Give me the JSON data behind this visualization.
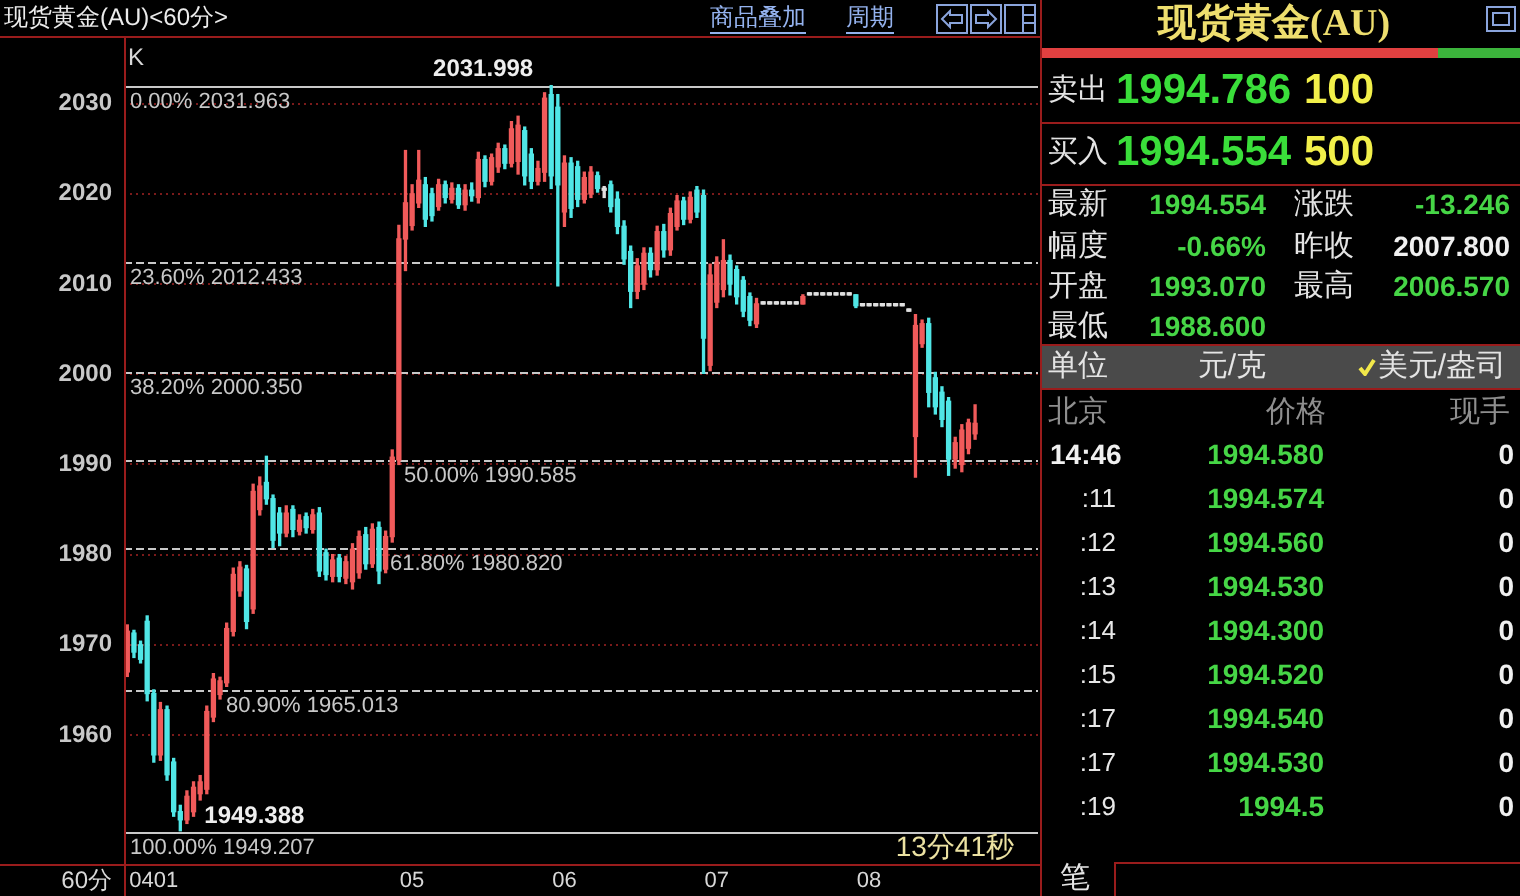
{
  "chart_data": [
    {
      "type": "candlestick",
      "title": "现货黄金(AU)<60分>",
      "xlabel": "60分",
      "categories": [
        null,
        null,
        null,
        null,
        "0401",
        null,
        null,
        null,
        null,
        null,
        null,
        null,
        null,
        null,
        null,
        null,
        null,
        null,
        null,
        null,
        null,
        null,
        null,
        null,
        null,
        null,
        null,
        null,
        null,
        null,
        null,
        null,
        null,
        null,
        null,
        null,
        null,
        null,
        null,
        null,
        null,
        null,
        null,
        "05",
        null,
        null,
        null,
        null,
        null,
        null,
        null,
        null,
        null,
        null,
        null,
        null,
        null,
        null,
        null,
        null,
        null,
        null,
        null,
        null,
        null,
        null,
        "06",
        null,
        null,
        null,
        null,
        null,
        null,
        null,
        null,
        null,
        null,
        null,
        null,
        null,
        null,
        null,
        null,
        null,
        null,
        null,
        null,
        null,
        null,
        "07",
        null,
        null,
        null,
        null,
        null,
        null,
        null,
        null,
        null,
        null,
        null,
        null,
        null,
        null,
        null,
        null,
        null,
        null,
        null,
        null,
        null,
        null,
        "08",
        null,
        null,
        null,
        null,
        null,
        null,
        null,
        null,
        null,
        null,
        null,
        null,
        null,
        null,
        null,
        null,
        null,
        null,
        null,
        null,
        null,
        null,
        null,
        null,
        null
      ],
      "ohlc": [
        [
          1967.0,
          1972.2,
          1966.5,
          1971.5
        ],
        [
          1971.3,
          1971.6,
          1968.6,
          1969.2
        ],
        [
          1970.0,
          1970.4,
          1968.0,
          1968.4
        ],
        [
          1972.6,
          1973.2,
          1963.8,
          1964.6
        ],
        [
          1964.6,
          1965.0,
          1957.0,
          1957.8
        ],
        [
          1957.8,
          1963.6,
          1957.2,
          1962.8
        ],
        [
          1962.8,
          1963.2,
          1955.0,
          1955.6
        ],
        [
          1957.0,
          1957.4,
          1951.0,
          1951.5
        ],
        [
          1951.5,
          1952.2,
          1949.388,
          1950.6
        ],
        [
          1950.6,
          1953.8,
          1950.2,
          1953.2
        ],
        [
          1951.5,
          1954.8,
          1951.0,
          1954.2
        ],
        [
          1953.5,
          1955.5,
          1952.8,
          1954.8
        ],
        [
          1954.0,
          1963.2,
          1953.5,
          1962.6
        ],
        [
          1962.0,
          1966.8,
          1961.5,
          1966.2
        ],
        [
          1964.5,
          1966.4,
          1964.0,
          1966.0
        ],
        [
          1965.8,
          1972.4,
          1965.4,
          1971.8
        ],
        [
          1971.5,
          1978.5,
          1971.0,
          1977.8
        ],
        [
          1976.0,
          1979.2,
          1975.4,
          1978.6
        ],
        [
          1978.4,
          1978.8,
          1971.8,
          1972.6
        ],
        [
          1974.0,
          1987.8,
          1973.5,
          1987.0
        ],
        [
          1985.0,
          1988.6,
          1984.4,
          1987.6
        ],
        [
          1988.0,
          1990.9,
          1985.6,
          1986.2
        ],
        [
          1986.2,
          1986.6,
          1980.8,
          1981.6
        ],
        [
          1984.6,
          1985.2,
          1981.0,
          1982.4
        ],
        [
          1982.4,
          1985.4,
          1982.0,
          1984.6
        ],
        [
          1985.0,
          1985.4,
          1982.0,
          1982.8
        ],
        [
          1982.6,
          1984.4,
          1982.2,
          1983.8
        ],
        [
          1984.2,
          1984.6,
          1982.4,
          1983.0
        ],
        [
          1982.8,
          1985.0,
          1982.4,
          1984.4
        ],
        [
          1984.6,
          1985.2,
          1977.6,
          1978.2
        ],
        [
          1980.2,
          1980.6,
          1977.2,
          1977.8
        ],
        [
          1977.6,
          1980.0,
          1977.0,
          1979.4
        ],
        [
          1979.6,
          1980.0,
          1977.0,
          1977.6
        ],
        [
          1977.4,
          1979.8,
          1976.8,
          1979.2
        ],
        [
          1977.0,
          1981.2,
          1976.2,
          1980.6
        ],
        [
          1978.0,
          1982.6,
          1977.4,
          1982.0
        ],
        [
          1982.2,
          1983.0,
          1978.4,
          1979.0
        ],
        [
          1979.0,
          1983.4,
          1978.6,
          1982.8
        ],
        [
          1983.0,
          1983.6,
          1976.8,
          1978.2
        ],
        [
          1978.4,
          1982.6,
          1978.0,
          1982.0
        ],
        [
          1982.0,
          1991.6,
          1981.4,
          1990.8
        ],
        [
          1990.5,
          2016.5,
          1990.0,
          2015.0
        ],
        [
          2015.0,
          2024.8,
          2011.5,
          2019.0
        ],
        [
          2016.5,
          2021.0,
          2016.0,
          2020.0
        ],
        [
          2019.0,
          2024.8,
          2018.5,
          2021.5
        ],
        [
          2021.0,
          2021.8,
          2016.4,
          2017.2
        ],
        [
          2020.0,
          2020.6,
          2017.0,
          2017.6
        ],
        [
          2018.6,
          2021.6,
          2018.2,
          2021.0
        ],
        [
          2021.0,
          2021.4,
          2019.0,
          2019.6
        ],
        [
          2019.4,
          2021.2,
          2019.0,
          2020.6
        ],
        [
          2020.6,
          2021.0,
          2018.4,
          2018.8
        ],
        [
          2018.8,
          2021.0,
          2018.2,
          2020.4
        ],
        [
          2020.4,
          2021.2,
          2019.2,
          2019.8
        ],
        [
          2019.6,
          2024.6,
          2019.0,
          2023.8
        ],
        [
          2023.8,
          2024.2,
          2020.8,
          2021.4
        ],
        [
          2021.4,
          2024.4,
          2021.0,
          2024.0
        ],
        [
          2023.0,
          2025.6,
          2022.4,
          2025.0
        ],
        [
          2025.0,
          2025.4,
          2022.8,
          2023.4
        ],
        [
          2023.4,
          2028.0,
          2023.0,
          2027.2
        ],
        [
          2023.6,
          2028.6,
          2022.2,
          2027.6
        ],
        [
          2027.0,
          2027.4,
          2021.0,
          2022.0
        ],
        [
          2024.4,
          2025.0,
          2020.6,
          2021.4
        ],
        [
          2021.4,
          2023.6,
          2021.0,
          2022.8
        ],
        [
          2022.4,
          2031.2,
          2021.4,
          2030.6
        ],
        [
          2031.0,
          2031.998,
          2020.6,
          2022.0
        ],
        [
          2029.6,
          2031.0,
          2009.8,
          2021.0
        ],
        [
          2018.0,
          2024.2,
          2016.4,
          2023.4
        ],
        [
          2023.4,
          2024.0,
          2017.4,
          2018.4
        ],
        [
          2023.0,
          2023.6,
          2018.6,
          2019.4
        ],
        [
          2019.4,
          2022.4,
          2019.0,
          2021.8
        ],
        [
          2020.0,
          2023.0,
          2019.6,
          2022.4
        ],
        [
          2022.0,
          2022.4,
          2020.2,
          2020.6
        ],
        [
          2020.4,
          2020.8,
          2019.6,
          2020.4
        ],
        [
          2021.0,
          2021.4,
          2018.0,
          2018.6
        ],
        [
          2019.4,
          2020.2,
          2015.6,
          2016.4
        ],
        [
          2016.4,
          2017.0,
          2012.2,
          2012.8
        ],
        [
          2013.6,
          2014.2,
          2007.4,
          2009.2
        ],
        [
          2009.2,
          2012.8,
          2008.4,
          2012.0
        ],
        [
          2010.0,
          2014.0,
          2009.4,
          2013.4
        ],
        [
          2013.4,
          2014.0,
          2010.8,
          2011.6
        ],
        [
          2011.6,
          2016.4,
          2011.0,
          2015.8
        ],
        [
          2015.8,
          2016.6,
          2013.0,
          2013.8
        ],
        [
          2013.8,
          2018.4,
          2013.2,
          2017.8
        ],
        [
          2016.4,
          2019.8,
          2016.0,
          2019.2
        ],
        [
          2019.2,
          2019.6,
          2016.6,
          2017.2
        ],
        [
          2017.2,
          2020.2,
          2016.8,
          2019.6
        ],
        [
          2020.4,
          2020.8,
          2017.4,
          2018.0
        ],
        [
          2019.8,
          2020.4,
          2000.1,
          2004.0
        ],
        [
          2001.0,
          2012.2,
          2000.4,
          2011.0
        ],
        [
          2008.0,
          2013.0,
          2007.4,
          2012.4
        ],
        [
          2009.4,
          2014.9,
          2008.6,
          2012.6
        ],
        [
          2012.6,
          2013.2,
          2008.8,
          2010.0
        ],
        [
          2011.6,
          2012.0,
          2007.8,
          2008.6
        ],
        [
          2010.4,
          2010.8,
          2006.4,
          2007.0
        ],
        [
          2008.6,
          2009.0,
          2005.4,
          2006.0
        ],
        [
          2005.6,
          2008.4,
          2005.2,
          2007.8
        ],
        [
          2007.8,
          2007.8,
          2007.8,
          2007.8
        ],
        [
          2007.8,
          2007.8,
          2007.8,
          2007.8
        ],
        [
          2007.8,
          2007.8,
          2007.8,
          2007.8
        ],
        [
          2007.8,
          2007.8,
          2007.8,
          2007.8
        ],
        [
          2007.8,
          2007.8,
          2007.8,
          2007.8
        ],
        [
          2007.8,
          2007.8,
          2007.8,
          2007.8
        ],
        [
          2007.8,
          2008.8,
          2007.8,
          2008.6
        ],
        [
          2008.8,
          2008.8,
          2008.8,
          2008.8
        ],
        [
          2008.8,
          2008.8,
          2008.8,
          2008.8
        ],
        [
          2008.8,
          2008.8,
          2008.8,
          2008.8
        ],
        [
          2008.8,
          2008.8,
          2008.8,
          2008.8
        ],
        [
          2008.8,
          2008.8,
          2008.8,
          2008.8
        ],
        [
          2008.8,
          2008.8,
          2008.8,
          2008.8
        ],
        [
          2008.8,
          2008.8,
          2008.8,
          2008.8
        ],
        [
          2008.8,
          2008.8,
          2007.4,
          2007.6
        ],
        [
          2007.6,
          2007.6,
          2007.6,
          2007.6
        ],
        [
          2007.6,
          2007.6,
          2007.6,
          2007.6
        ],
        [
          2007.6,
          2007.6,
          2007.6,
          2007.6
        ],
        [
          2007.6,
          2007.6,
          2007.6,
          2007.6
        ],
        [
          2007.6,
          2007.6,
          2007.6,
          2007.6
        ],
        [
          2007.6,
          2007.6,
          2007.6,
          2007.6
        ],
        [
          2007.6,
          2007.6,
          2007.6,
          2007.6
        ],
        [
          2007.0,
          2007.0,
          2007.0,
          2007.0
        ],
        [
          1993.1,
          2006.6,
          1988.6,
          2005.4
        ],
        [
          2003.4,
          2006.0,
          2003.0,
          2005.6
        ],
        [
          2005.6,
          2006.2,
          1996.4,
          1998.0
        ],
        [
          1999.6,
          2000.2,
          1995.6,
          1996.4
        ],
        [
          1998.0,
          1998.6,
          1994.2,
          1995.0
        ],
        [
          1997.0,
          1997.4,
          1988.8,
          1990.6
        ],
        [
          1990.6,
          1993.0,
          1989.6,
          1992.4
        ],
        [
          1990.0,
          1994.4,
          1989.2,
          1993.8
        ],
        [
          1991.8,
          1995.0,
          1991.2,
          1994.6
        ],
        [
          1993.4,
          1996.6,
          1992.8,
          1994.554
        ],
        null,
        null,
        null,
        null,
        null,
        null,
        null,
        null,
        null
      ],
      "colors": [
        "#f05a5a",
        "#50e6e6",
        "#50e6e6",
        "#50e6e6",
        "#50e6e6",
        "#f05a5a",
        "#50e6e6",
        "#50e6e6",
        "#50e6e6",
        "#f05a5a",
        "#f05a5a",
        "#f05a5a",
        "#f05a5a",
        "#f05a5a",
        "#f05a5a",
        "#f05a5a",
        "#f05a5a",
        "#f05a5a",
        "#50e6e6",
        "#f05a5a",
        "#f05a5a",
        "#50e6e6",
        "#50e6e6",
        "#50e6e6",
        "#f05a5a",
        "#50e6e6",
        "#f05a5a",
        "#50e6e6",
        "#f05a5a",
        "#50e6e6",
        "#50e6e6",
        "#f05a5a",
        "#50e6e6",
        "#f05a5a",
        "#f05a5a",
        "#f05a5a",
        "#50e6e6",
        "#f05a5a",
        "#50e6e6",
        "#f05a5a",
        "#f05a5a",
        "#f05a5a",
        "#f05a5a",
        "#f05a5a",
        "#f05a5a",
        "#50e6e6",
        "#50e6e6",
        "#f05a5a",
        "#50e6e6",
        "#f05a5a",
        "#50e6e6",
        "#f05a5a",
        "#50e6e6",
        "#f05a5a",
        "#50e6e6",
        "#f05a5a",
        "#f05a5a",
        "#50e6e6",
        "#f05a5a",
        "#f05a5a",
        "#50e6e6",
        "#50e6e6",
        "#f05a5a",
        "#f05a5a",
        "#50e6e6",
        "#50e6e6",
        "#f05a5a",
        "#50e6e6",
        "#50e6e6",
        "#f05a5a",
        "#f05a5a",
        "#50e6e6",
        "#e0e0e0",
        "#50e6e6",
        "#50e6e6",
        "#50e6e6",
        "#50e6e6",
        "#f05a5a",
        "#f05a5a",
        "#50e6e6",
        "#f05a5a",
        "#50e6e6",
        "#f05a5a",
        "#f05a5a",
        "#50e6e6",
        "#f05a5a",
        "#50e6e6",
        "#50e6e6",
        "#f05a5a",
        "#f05a5a",
        "#f05a5a",
        "#50e6e6",
        "#50e6e6",
        "#50e6e6",
        "#50e6e6",
        "#f05a5a",
        "#e0e0e0",
        "#e0e0e0",
        "#e0e0e0",
        "#e0e0e0",
        "#e0e0e0",
        "#e0e0e0",
        "#f05a5a",
        "#e0e0e0",
        "#e0e0e0",
        "#e0e0e0",
        "#e0e0e0",
        "#e0e0e0",
        "#e0e0e0",
        "#e0e0e0",
        "#50e6e6",
        "#e0e0e0",
        "#e0e0e0",
        "#e0e0e0",
        "#e0e0e0",
        "#e0e0e0",
        "#e0e0e0",
        "#e0e0e0",
        "#e0e0e0",
        "#f05a5a",
        "#f05a5a",
        "#50e6e6",
        "#50e6e6",
        "#50e6e6",
        "#50e6e6",
        "#f05a5a",
        "#f05a5a",
        "#f05a5a",
        "#f05a5a",
        null,
        null,
        null,
        null,
        null,
        null,
        null,
        null,
        null
      ],
      "ylim": [
        1945.7,
        2037.5
      ],
      "yticks": [
        1960,
        1970,
        1980,
        1990,
        2000,
        2010,
        2020,
        2030
      ],
      "grid": "y",
      "ref_lines": [
        {
          "axis": "y",
          "value": 2031.963,
          "label": "0.00% 2031.963",
          "color": "#c8c8c8",
          "line_style": "solid"
        },
        {
          "axis": "y",
          "value": 2012.433,
          "label": "23.60% 2012.433",
          "color": "#c8c8c8",
          "line_style": "dashed"
        },
        {
          "axis": "y",
          "value": 2000.35,
          "label": "38.20% 2000.350",
          "color": "#c8c8c8",
          "line_style": "dashed"
        },
        {
          "axis": "y",
          "value": 1990.585,
          "label": "50.00% 1990.585",
          "color": "#c8c8c8",
          "line_style": "dashed"
        },
        {
          "axis": "y",
          "value": 1980.82,
          "label": "61.80% 1980.820",
          "color": "#c8c8c8",
          "line_style": "dashed"
        },
        {
          "axis": "y",
          "value": 1965.013,
          "label": "80.90% 1965.013",
          "color": "#c8c8c8",
          "line_style": "dashed"
        },
        {
          "axis": "y",
          "value": 1949.207,
          "label": "100.00% 1949.207",
          "color": "#c8c8c8",
          "line_style": "solid"
        }
      ],
      "annotations": [
        "K",
        "商品叠加",
        "周期",
        "13分41秒",
        {
          "text": "2031.998",
          "y": 2031.998
        },
        {
          "text": "1949.388",
          "y": 1949.388
        }
      ]
    },
    {
      "type": "other",
      "title": "现货黄金(AU)",
      "annotations": [
        "卖出",
        "1994.786",
        "100",
        "买入",
        "1994.554",
        "500",
        "最新",
        "1994.554",
        "涨跌",
        "-13.246",
        "幅度",
        "-0.66%",
        "昨收",
        "2007.800",
        "开盘",
        "1993.070",
        "最高",
        "2006.570",
        "最低",
        "1988.600",
        "单位",
        "元/克",
        "美元/盎司",
        "北京",
        "价格",
        "现手",
        "14:46",
        "1994.580",
        "0",
        ":11",
        "1994.574",
        "0",
        ":12",
        "1994.560",
        "0",
        ":13",
        "1994.530",
        "0",
        ":14",
        "1994.300",
        "0",
        ":15",
        "1994.520",
        "0",
        ":17",
        "1994.540",
        "0",
        ":17",
        "1994.530",
        "0",
        ":19",
        "1994.5",
        "0",
        "笔"
      ]
    }
  ]
}
